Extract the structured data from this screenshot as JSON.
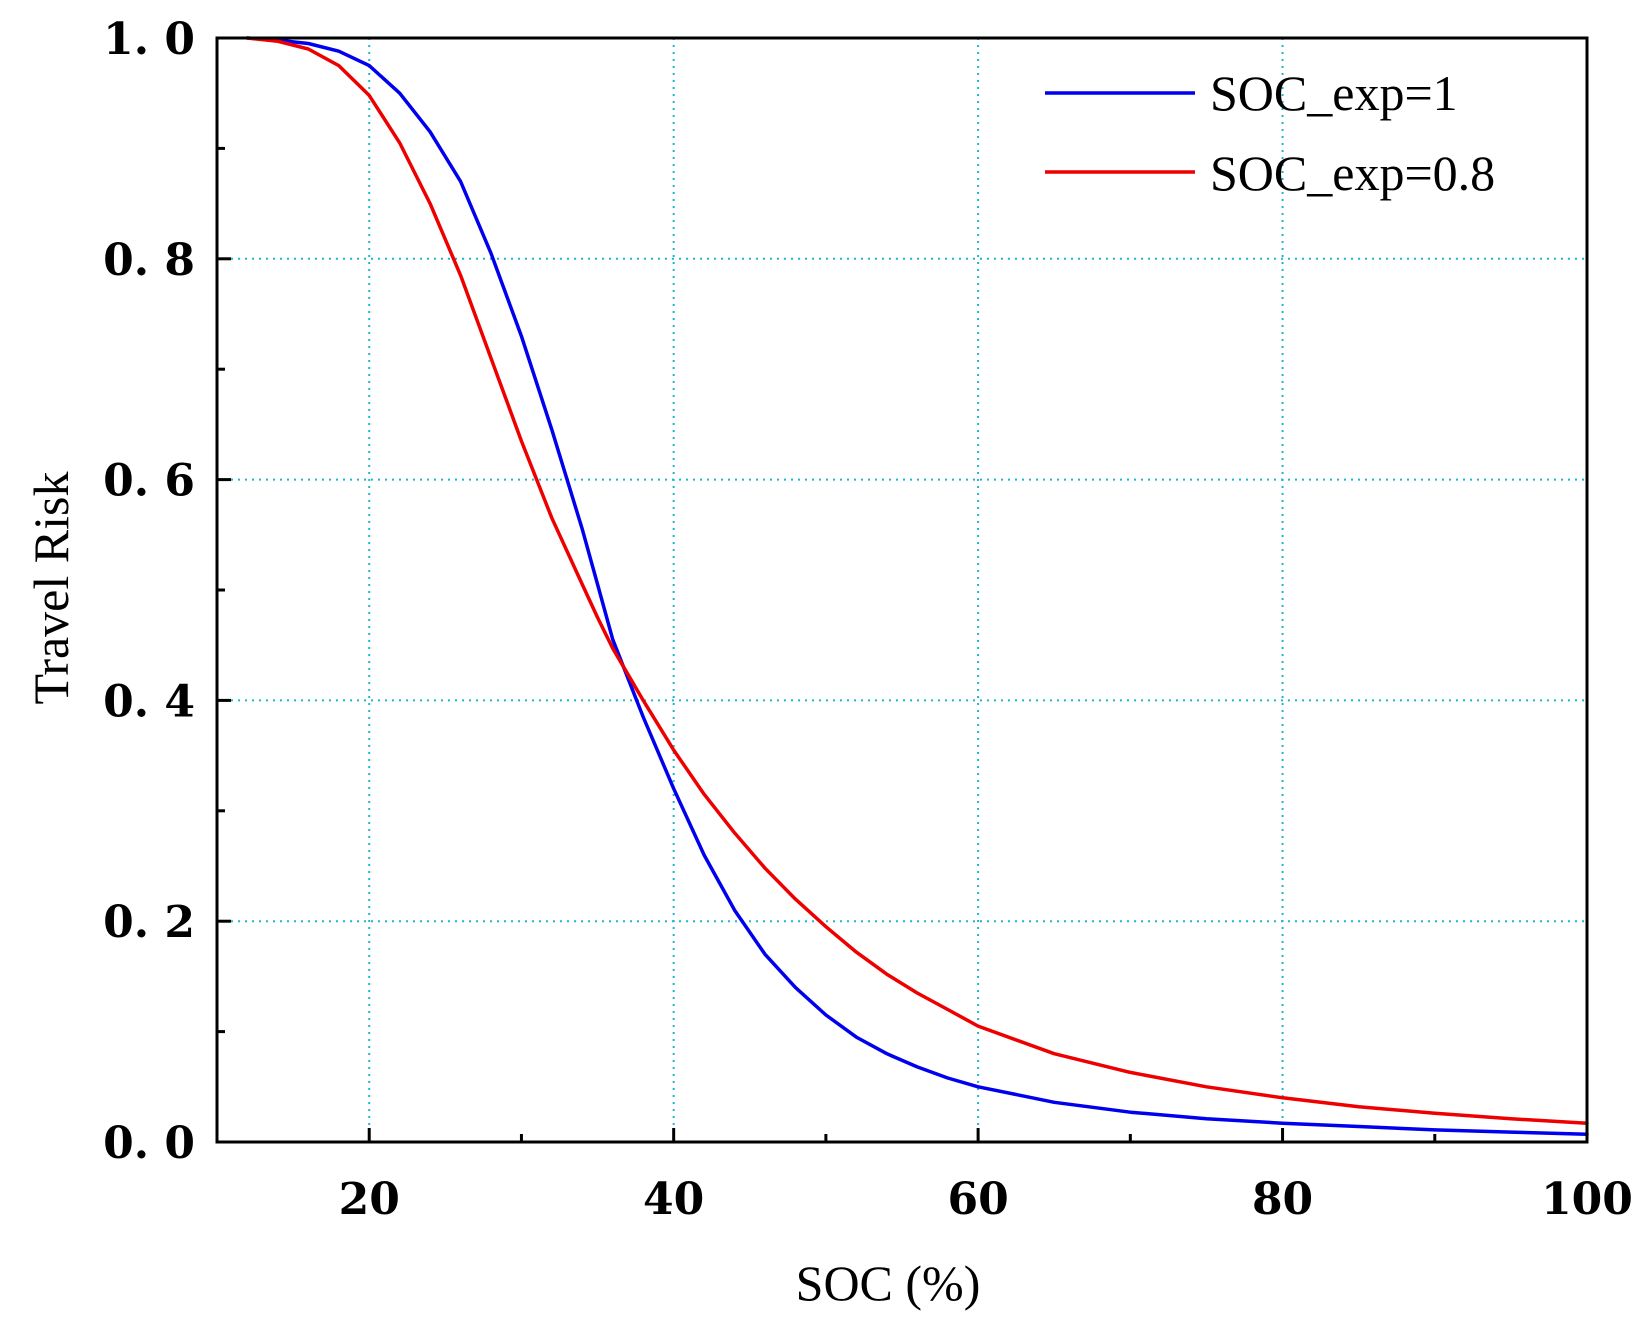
{
  "chart_data": {
    "type": "line",
    "title": "",
    "xlabel": "SOC (%)",
    "ylabel": "Travel Risk",
    "xlim": [
      10,
      100
    ],
    "ylim": [
      0,
      1
    ],
    "grid": true,
    "legend_position": "top-right",
    "x_ticks": [
      {
        "value": 20,
        "label": "20"
      },
      {
        "value": 40,
        "label": "40"
      },
      {
        "value": 60,
        "label": "60"
      },
      {
        "value": 80,
        "label": "80"
      },
      {
        "value": 100,
        "label": "100"
      }
    ],
    "y_ticks": [
      {
        "value": 0.0,
        "label": "0. 0"
      },
      {
        "value": 0.2,
        "label": "0. 2"
      },
      {
        "value": 0.4,
        "label": "0. 4"
      },
      {
        "value": 0.6,
        "label": "0. 6"
      },
      {
        "value": 0.8,
        "label": "0. 8"
      },
      {
        "value": 1.0,
        "label": "1. 0"
      }
    ],
    "x_minor_ticks": [
      30,
      50,
      70,
      90
    ],
    "y_minor_ticks": [
      0.1,
      0.3,
      0.5,
      0.7,
      0.9
    ],
    "series": [
      {
        "name": "SOC_exp=1",
        "color": "#0000ee",
        "x": [
          12,
          14,
          16,
          18,
          20,
          22,
          24,
          26,
          28,
          30,
          32,
          34,
          35,
          36,
          38,
          40,
          42,
          44,
          46,
          48,
          50,
          52,
          54,
          56,
          58,
          60,
          65,
          70,
          75,
          80,
          85,
          90,
          95,
          100
        ],
        "y": [
          1.0,
          0.998,
          0.995,
          0.988,
          0.975,
          0.95,
          0.915,
          0.87,
          0.805,
          0.73,
          0.645,
          0.555,
          0.505,
          0.455,
          0.385,
          0.32,
          0.26,
          0.21,
          0.17,
          0.14,
          0.115,
          0.095,
          0.08,
          0.068,
          0.058,
          0.05,
          0.036,
          0.027,
          0.021,
          0.017,
          0.014,
          0.011,
          0.009,
          0.007
        ]
      },
      {
        "name": "SOC_exp=0.8",
        "color": "#ee0000",
        "x": [
          12,
          14,
          16,
          18,
          20,
          22,
          24,
          26,
          28,
          30,
          32,
          34,
          35,
          36,
          38,
          40,
          42,
          44,
          46,
          48,
          50,
          52,
          54,
          56,
          58,
          60,
          65,
          70,
          75,
          80,
          85,
          90,
          95,
          100
        ],
        "y": [
          1.0,
          0.997,
          0.99,
          0.975,
          0.948,
          0.905,
          0.85,
          0.785,
          0.71,
          0.635,
          0.565,
          0.505,
          0.475,
          0.447,
          0.4,
          0.355,
          0.315,
          0.28,
          0.248,
          0.22,
          0.195,
          0.172,
          0.152,
          0.135,
          0.12,
          0.105,
          0.08,
          0.063,
          0.05,
          0.04,
          0.032,
          0.026,
          0.021,
          0.017
        ]
      }
    ]
  },
  "colors": {
    "grid": "#1fb6d0",
    "axis": "#000000"
  }
}
